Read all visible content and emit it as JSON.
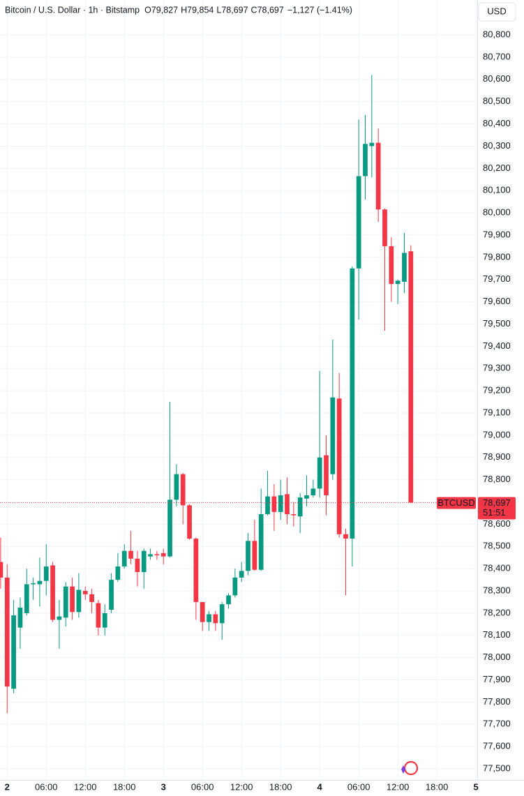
{
  "chart_data": {
    "type": "candlestick",
    "header": {
      "symbol": "Bitcoin / U.S. Dollar · 1h · Bitstamp",
      "open": {
        "key": "O",
        "text": "79,827"
      },
      "high": {
        "key": "H",
        "text": "79,854"
      },
      "low": {
        "key": "L",
        "text": "78,697"
      },
      "close": {
        "key": "C",
        "text": "78,697"
      },
      "change": "−1,127 (−1.41%)"
    },
    "currency": "USD",
    "ticker": "BTCUSD",
    "countdown": "51:51",
    "last_price": {
      "value": 78697,
      "label": "78,697"
    },
    "up_color": "#089981",
    "down_color": "#f23645",
    "grid": true,
    "xlim": [
      -0.1,
      73.2
    ],
    "ylim": [
      77450,
      80957
    ],
    "xticks": [
      {
        "value": 1,
        "label": "2"
      },
      {
        "value": 7,
        "label": "06:00"
      },
      {
        "value": 13,
        "label": "12:00"
      },
      {
        "value": 19,
        "label": "18:00"
      },
      {
        "value": 25,
        "label": "3"
      },
      {
        "value": 31,
        "label": "06:00"
      },
      {
        "value": 37,
        "label": "12:00"
      },
      {
        "value": 43,
        "label": "18:00"
      },
      {
        "value": 49,
        "label": "4"
      },
      {
        "value": 55,
        "label": "06:00"
      },
      {
        "value": 61,
        "label": "12:00"
      },
      {
        "value": 67,
        "label": "18:00"
      },
      {
        "value": 73,
        "label": "5"
      }
    ],
    "yticks": [
      {
        "value": 77500,
        "label": "77,500"
      },
      {
        "value": 77600,
        "label": "77,600"
      },
      {
        "value": 77700,
        "label": "77,700"
      },
      {
        "value": 77800,
        "label": "77,800"
      },
      {
        "value": 77900,
        "label": "77,900"
      },
      {
        "value": 78000,
        "label": "78,000"
      },
      {
        "value": 78100,
        "label": "78,100"
      },
      {
        "value": 78200,
        "label": "78,200"
      },
      {
        "value": 78300,
        "label": "78,300"
      },
      {
        "value": 78400,
        "label": "78,400"
      },
      {
        "value": 78500,
        "label": "78,500"
      },
      {
        "value": 78600,
        "label": "78,600"
      },
      {
        "value": 78700,
        "label": "78,700"
      },
      {
        "value": 78800,
        "label": "78,800"
      },
      {
        "value": 78900,
        "label": "78,900"
      },
      {
        "value": 79000,
        "label": "79,000"
      },
      {
        "value": 79100,
        "label": "79,100"
      },
      {
        "value": 79200,
        "label": "79,200"
      },
      {
        "value": 79300,
        "label": "79,300"
      },
      {
        "value": 79400,
        "label": "79,400"
      },
      {
        "value": 79500,
        "label": "79,500"
      },
      {
        "value": 79600,
        "label": "79,600"
      },
      {
        "value": 79700,
        "label": "79,700"
      },
      {
        "value": 79800,
        "label": "79,800"
      },
      {
        "value": 79900,
        "label": "79,900"
      },
      {
        "value": 80000,
        "label": "80,000"
      },
      {
        "value": 80100,
        "label": "80,100"
      },
      {
        "value": 80200,
        "label": "80,200"
      },
      {
        "value": 80300,
        "label": "80,300"
      },
      {
        "value": 80400,
        "label": "80,400"
      },
      {
        "value": 80500,
        "label": "80,500"
      },
      {
        "value": 80600,
        "label": "80,600"
      },
      {
        "value": 80700,
        "label": "80,700"
      },
      {
        "value": 80800,
        "label": "80,800"
      }
    ],
    "open": [
      78430,
      78360,
      77860,
      78135,
      78200,
      78330,
      78330,
      78345,
      78415,
      78170,
      78180,
      78320,
      78205,
      78300,
      78285,
      78245,
      78135,
      78215,
      78350,
      78410,
      78480,
      78445,
      78385,
      78455,
      78465,
      78470,
      78455,
      78710,
      78825,
      78685,
      78535,
      78250,
      78160,
      78195,
      78155,
      78240,
      78280,
      78360,
      78390,
      78525,
      78395,
      78645,
      78725,
      78655,
      78735,
      78645,
      78635,
      78715,
      78730,
      78760,
      78910,
      78825,
      79165,
      78555,
      78535,
      79750,
      80165,
      80300,
      80315,
      80015,
      79850,
      79680,
      79690,
      79827
    ],
    "high": [
      78540,
      78420,
      78260,
      78270,
      78400,
      78360,
      78450,
      78510,
      78430,
      78260,
      78340,
      78360,
      78380,
      78320,
      78310,
      78260,
      78240,
      78380,
      78470,
      78510,
      78570,
      78480,
      78490,
      78490,
      78480,
      78490,
      79150,
      78870,
      78830,
      78690,
      78540,
      78250,
      78210,
      78210,
      78250,
      78290,
      78400,
      78430,
      78560,
      78620,
      78760,
      78840,
      78780,
      78800,
      78810,
      78700,
      78740,
      78820,
      78800,
      79290,
      79000,
      79430,
      79280,
      78580,
      79760,
      80420,
      80440,
      80620,
      80380,
      80020,
      79890,
      79700,
      79910,
      79854
    ],
    "low": [
      78310,
      77750,
      77840,
      78040,
      78190,
      78260,
      78230,
      78280,
      78160,
      78040,
      78140,
      78170,
      78180,
      78260,
      78200,
      78100,
      78100,
      78200,
      78340,
      78400,
      78420,
      78320,
      78310,
      78440,
      78440,
      78420,
      78450,
      78680,
      78600,
      78530,
      78170,
      78120,
      78120,
      78120,
      78080,
      78220,
      78270,
      78340,
      78370,
      78390,
      78390,
      78640,
      78570,
      78620,
      78600,
      78590,
      78560,
      78680,
      78720,
      78720,
      78640,
      78800,
      78540,
      78280,
      78410,
      79520,
      80060,
      80160,
      79960,
      79470,
      79600,
      79590,
      79640,
      78697
    ],
    "close": [
      78360,
      77870,
      78190,
      78225,
      78330,
      78335,
      78345,
      78410,
      78170,
      78185,
      78320,
      78205,
      78305,
      78285,
      78250,
      78135,
      78200,
      78350,
      78410,
      78480,
      78445,
      78385,
      78480,
      78465,
      78460,
      78455,
      78710,
      78825,
      78685,
      78535,
      78250,
      78160,
      78195,
      78155,
      78240,
      78280,
      78360,
      78390,
      78525,
      78395,
      78645,
      78725,
      78655,
      78730,
      78645,
      78640,
      78720,
      78730,
      78760,
      78900,
      78730,
      79170,
      78555,
      78535,
      79750,
      80165,
      80310,
      80315,
      80015,
      79850,
      79680,
      79695,
      79820,
      78697
    ]
  }
}
